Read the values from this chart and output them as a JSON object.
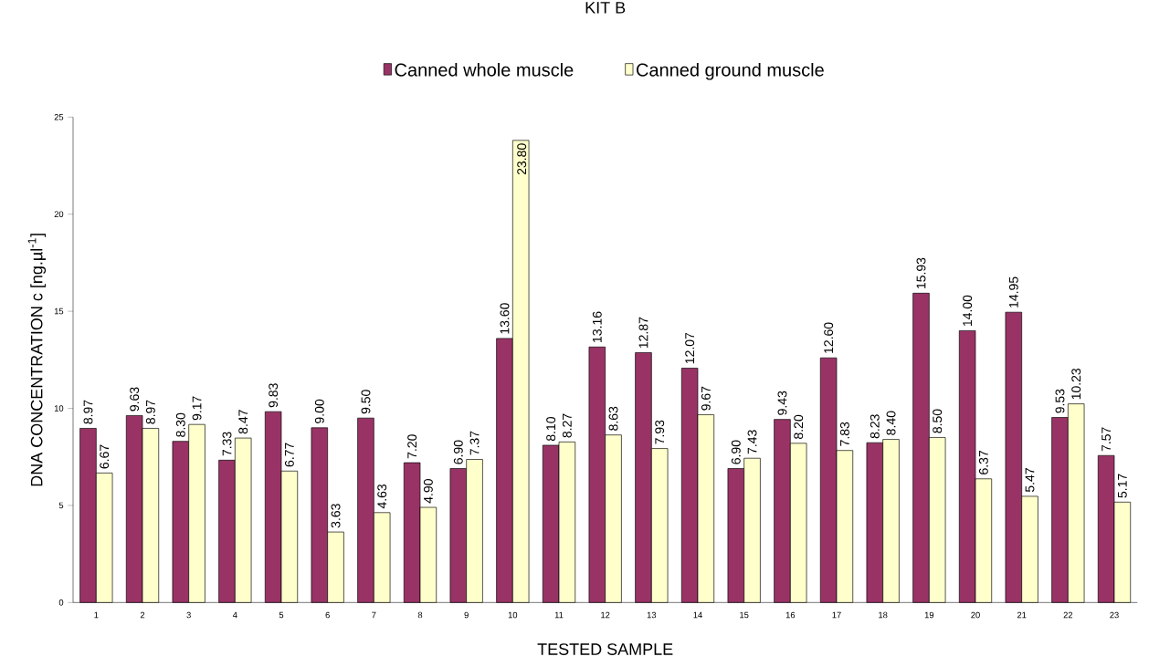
{
  "chart_data": {
    "type": "bar",
    "title": "KIT B",
    "xlabel": "TESTED SAMPLE",
    "ylabel": "DNA CONCENTRATION c [ng.µl$^{-1}$]",
    "categories": [
      "1",
      "2",
      "3",
      "4",
      "5",
      "6",
      "7",
      "8",
      "9",
      "10",
      "11",
      "12",
      "13",
      "14",
      "15",
      "16",
      "17",
      "18",
      "19",
      "20",
      "21",
      "22",
      "23"
    ],
    "series": [
      {
        "name": "Canned whole muscle",
        "color": "#993366",
        "values": [
          8.97,
          9.63,
          8.3,
          7.33,
          9.83,
          9.0,
          9.5,
          7.2,
          6.9,
          13.6,
          8.1,
          13.16,
          12.87,
          12.07,
          6.9,
          9.43,
          12.6,
          8.23,
          15.93,
          14.0,
          14.95,
          9.53,
          7.57
        ],
        "value_labels": [
          "8.97",
          "9.63",
          "8.30",
          "7.33",
          "9.83",
          "9.00",
          "9.50",
          "7.20",
          "6.90",
          "13.60",
          "8.10",
          "13.16",
          "12.87",
          "12.07",
          "6.90",
          "9.43",
          "12.60",
          "8.23",
          "15.93",
          "14.00",
          "14.95",
          "9.53",
          "7.57"
        ]
      },
      {
        "name": "Canned ground muscle",
        "color": "#ffffcc",
        "values": [
          6.67,
          8.97,
          9.17,
          8.47,
          6.77,
          3.63,
          4.63,
          4.9,
          7.37,
          23.8,
          8.27,
          8.63,
          7.93,
          9.67,
          7.43,
          8.2,
          7.83,
          8.4,
          8.5,
          6.37,
          5.47,
          10.23,
          5.17
        ],
        "value_labels": [
          "6.67",
          "8.97",
          "9.17",
          "8.47",
          "6.77",
          "3.63",
          "4.63",
          "4.90",
          "7.37",
          "23.80",
          "8.27",
          "8.63",
          "7.93",
          "9.67",
          "7.43",
          "8.20",
          "7.83",
          "8.40",
          "8.50",
          "6.37",
          "5.47",
          "10.23",
          "5.17"
        ]
      }
    ],
    "ylim": [
      0,
      25
    ],
    "yticks": [
      0,
      5,
      10,
      15,
      20,
      25
    ],
    "grid": false,
    "legend": "top"
  }
}
